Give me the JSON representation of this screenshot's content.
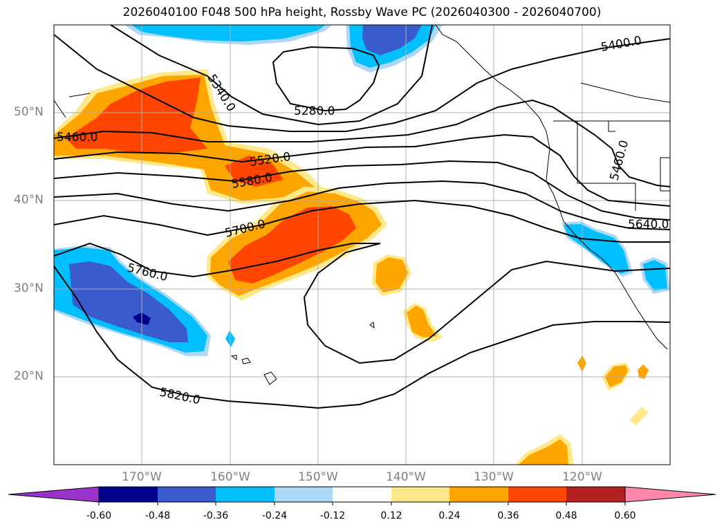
{
  "title": "2026040100 F048 500 hPa height, Rossby Wave PC (2026040300 - 2026040700)",
  "lat_labels": [
    "50°N",
    "40°N",
    "30°N",
    "20°N"
  ],
  "lon_labels": [
    "170°W",
    "160°W",
    "150°W",
    "140°W",
    "130°W",
    "120°W"
  ],
  "contour_labels": [
    "5460.0",
    "5340.0",
    "5280.0",
    "5400.0",
    "5520.0",
    "5580.0",
    "5700.0",
    "5760.0",
    "5820.0",
    "5460.0",
    "5640.0"
  ],
  "colorbar": {
    "ticks": [
      "-0.60",
      "-0.48",
      "-0.36",
      "-0.24",
      "-0.12",
      "0.12",
      "0.24",
      "0.36",
      "0.48",
      "0.60"
    ],
    "colors": [
      "#9933cc",
      "#00008b",
      "#3a5bcc",
      "#00bfff",
      "#add8f5",
      "#ffffff",
      "#ffe98a",
      "#ffa500",
      "#ff4500",
      "#b22222",
      "#ff88aa"
    ]
  },
  "shading_colors": {
    "dark_blue": "#00008b",
    "mid_blue": "#3a5bcc",
    "cyan": "#00bfff",
    "light_blue": "#add8f5",
    "light_yellow": "#ffe98a",
    "orange": "#ffa500",
    "red_orange": "#ff4500"
  }
}
